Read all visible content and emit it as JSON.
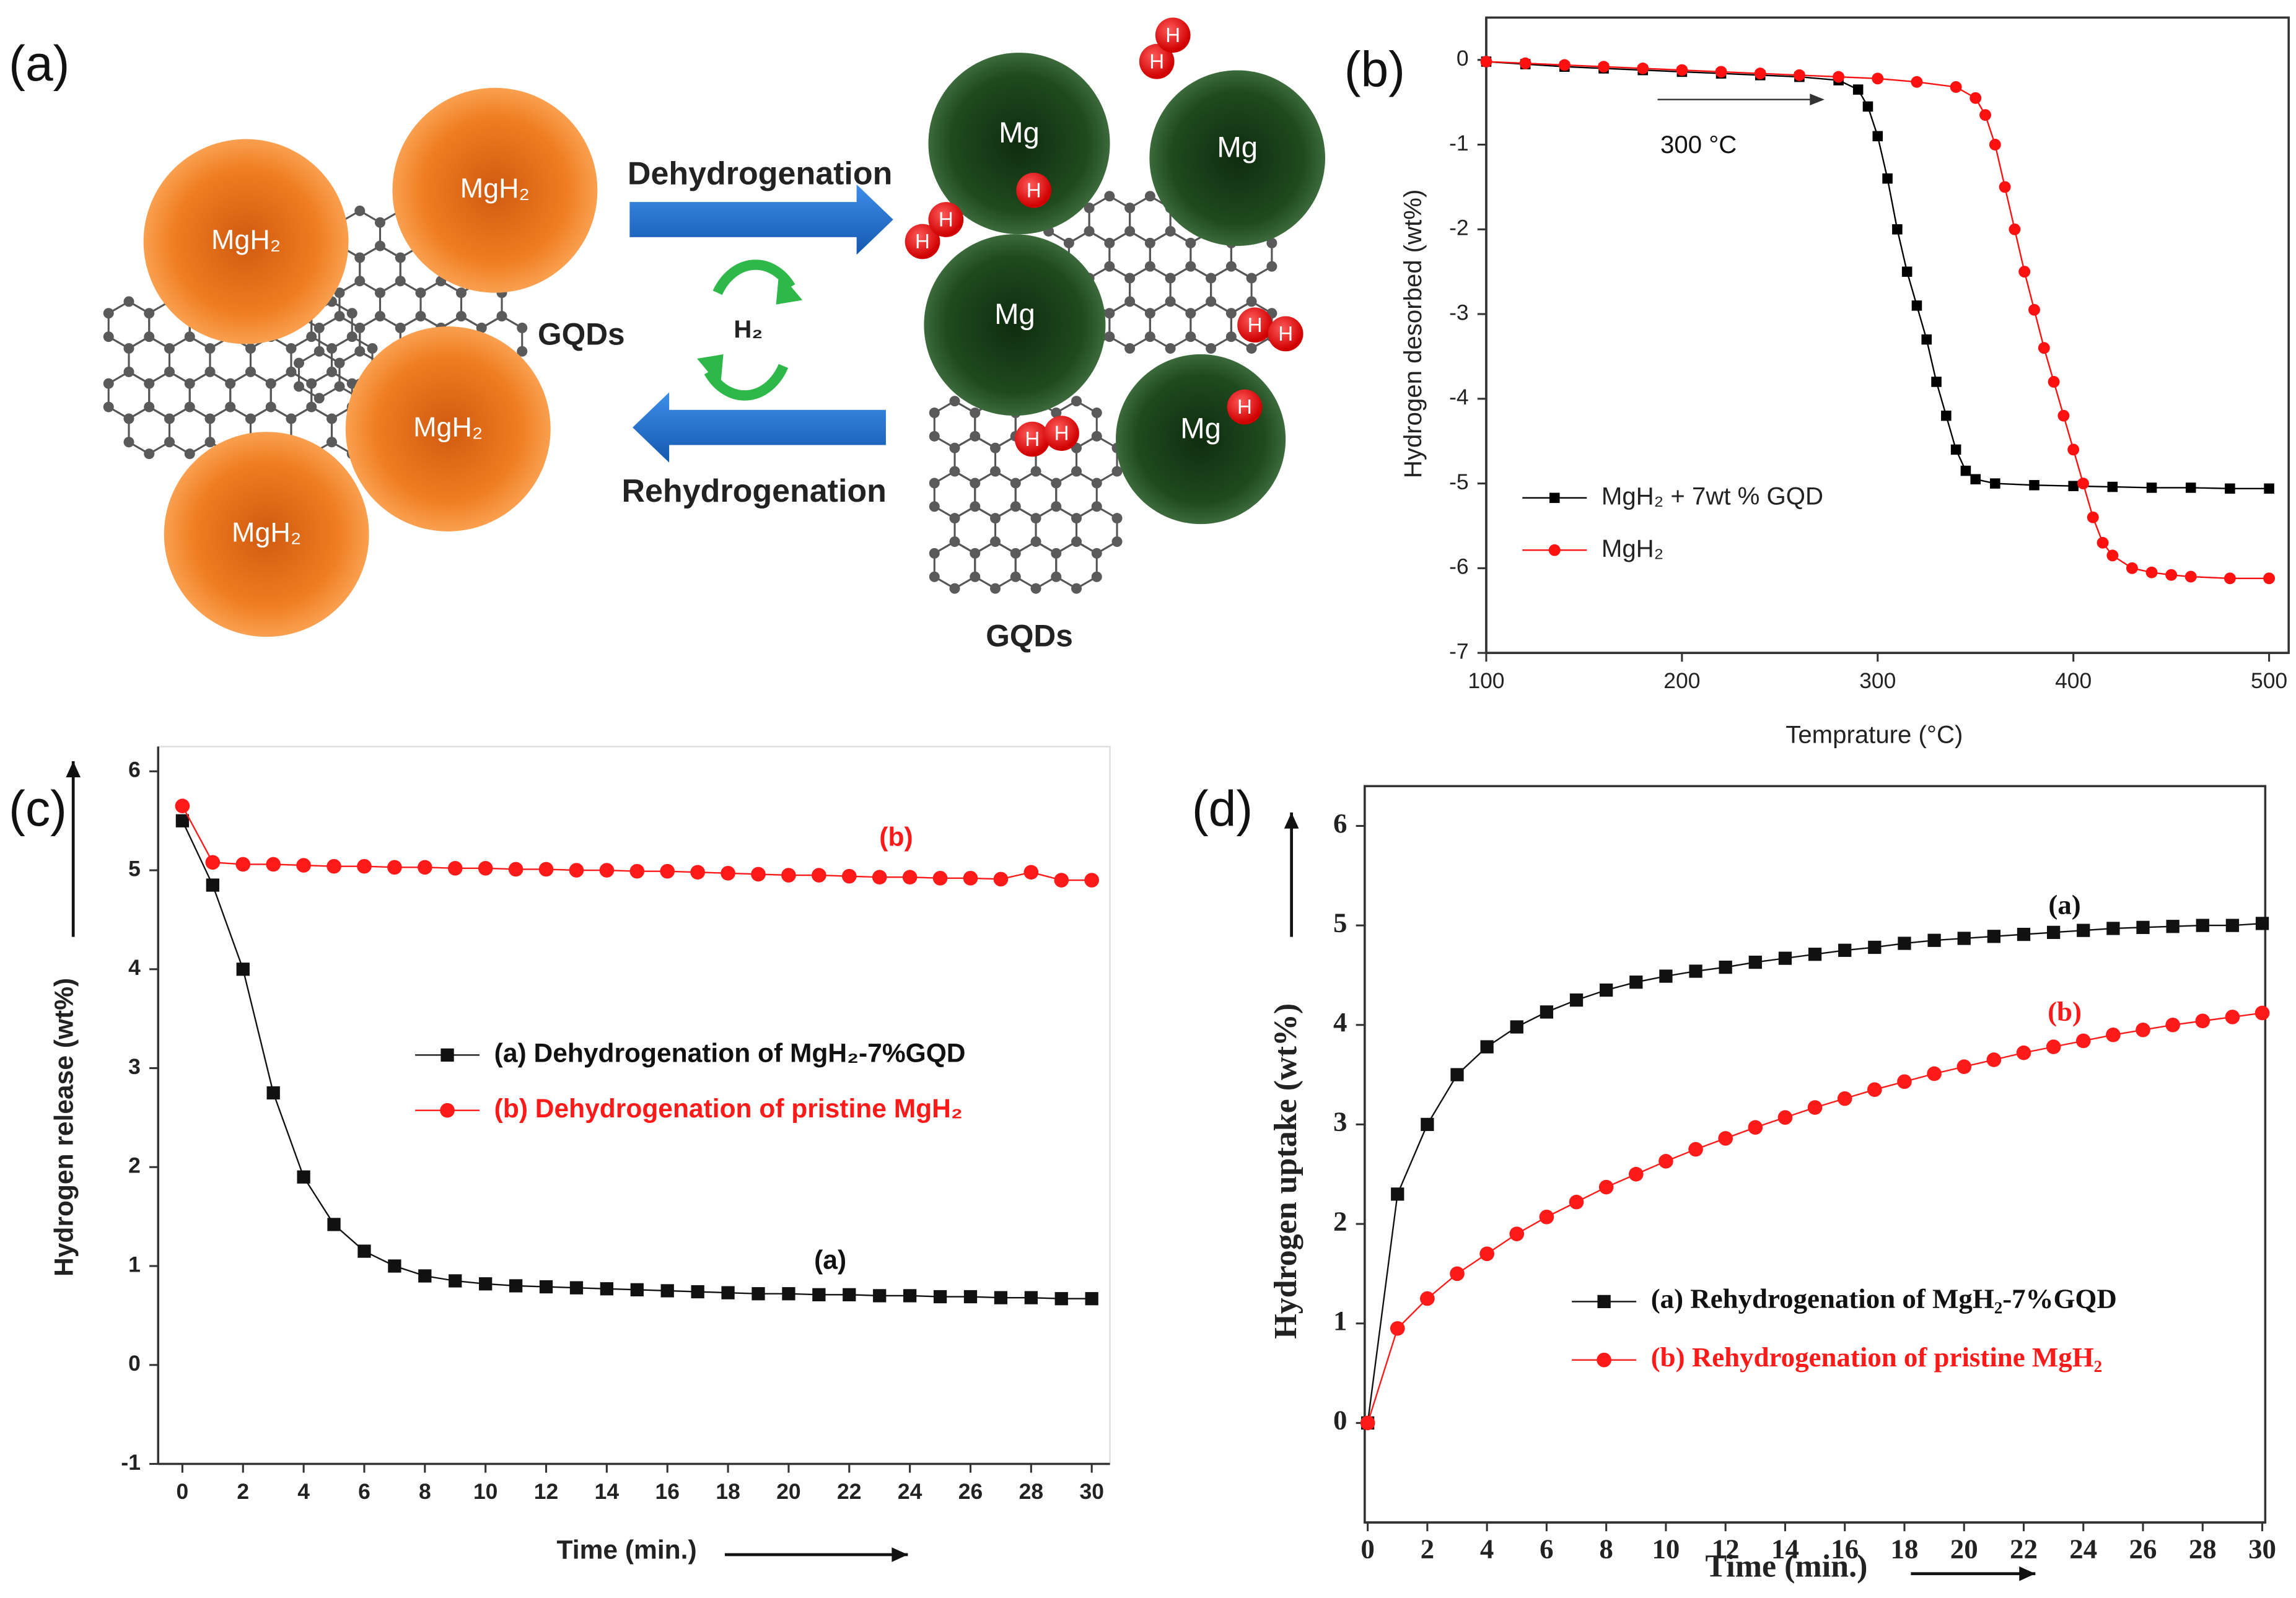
{
  "panel_labels": [
    "(a)",
    "(b)",
    "(c)",
    "(d)"
  ],
  "diagram": {
    "mgh2_labels": [
      "MgH₂",
      "MgH₂",
      "MgH₂",
      "MgH₂"
    ],
    "mg_labels": [
      "Mg",
      "Mg",
      "Mg",
      "Mg"
    ],
    "hydrogen_labels": [
      "H",
      "H",
      "H",
      "H",
      "H",
      "H",
      "H",
      "H",
      "H",
      "H"
    ],
    "process_labels": [
      "Dehydrogenation",
      "Rehydrogenation"
    ],
    "cycle_label": "H₂",
    "gqd_labels": [
      "GQDs",
      "GQDs"
    ]
  },
  "chart_data": [
    {
      "type": "line",
      "xlabel": "Temprature (°C)",
      "ylabel": "Hydrogen desorbed (wt%)",
      "xlim": [
        100,
        510
      ],
      "ylim": [
        -7,
        0.5
      ],
      "xticks": [
        100,
        200,
        300,
        400,
        500
      ],
      "yticks": [
        0,
        -1,
        -2,
        -3,
        -4,
        -5,
        -6,
        -7
      ],
      "legend": "lower left",
      "annotations": [
        "300 °C"
      ],
      "series": [
        {
          "name": "MgH₂ + 7wt % GQD",
          "color": "#000000",
          "marker": "square",
          "x": [
            100,
            120,
            140,
            160,
            180,
            200,
            220,
            240,
            260,
            280,
            290,
            295,
            300,
            305,
            310,
            315,
            320,
            325,
            330,
            335,
            340,
            345,
            350,
            360,
            380,
            400,
            420,
            440,
            460,
            480,
            500
          ],
          "values": [
            -0.02,
            -0.05,
            -0.08,
            -0.1,
            -0.12,
            -0.14,
            -0.16,
            -0.18,
            -0.2,
            -0.24,
            -0.35,
            -0.55,
            -0.9,
            -1.4,
            -2.0,
            -2.5,
            -2.9,
            -3.3,
            -3.8,
            -4.2,
            -4.6,
            -4.85,
            -4.95,
            -5.0,
            -5.02,
            -5.03,
            -5.04,
            -5.05,
            -5.05,
            -5.06,
            -5.06
          ]
        },
        {
          "name": "MgH₂",
          "color": "#ff1010",
          "marker": "circle",
          "x": [
            100,
            120,
            140,
            160,
            180,
            200,
            220,
            240,
            260,
            280,
            300,
            320,
            340,
            350,
            355,
            360,
            365,
            370,
            375,
            380,
            385,
            390,
            395,
            400,
            405,
            410,
            415,
            420,
            430,
            440,
            450,
            460,
            480,
            500
          ],
          "values": [
            -0.02,
            -0.04,
            -0.06,
            -0.08,
            -0.1,
            -0.12,
            -0.14,
            -0.16,
            -0.18,
            -0.2,
            -0.22,
            -0.26,
            -0.32,
            -0.45,
            -0.65,
            -1.0,
            -1.5,
            -2.0,
            -2.5,
            -2.95,
            -3.4,
            -3.8,
            -4.2,
            -4.6,
            -5.0,
            -5.4,
            -5.7,
            -5.85,
            -6.0,
            -6.05,
            -6.08,
            -6.1,
            -6.12,
            -6.12
          ]
        }
      ]
    },
    {
      "type": "line",
      "xlabel": "Time (min.)",
      "ylabel": "Hydrogen release (wt%)",
      "xlim": [
        -0.8,
        30.6
      ],
      "ylim": [
        -1,
        6.25
      ],
      "xticks": [
        0,
        2,
        4,
        6,
        8,
        10,
        12,
        14,
        16,
        18,
        20,
        22,
        24,
        26,
        28,
        30
      ],
      "yticks": [
        -1,
        0,
        1,
        2,
        3,
        4,
        5,
        6
      ],
      "legend": "center",
      "annotations": [
        "(a)",
        "(b)"
      ],
      "x": [
        0,
        1,
        2,
        3,
        4,
        5,
        6,
        7,
        8,
        9,
        10,
        11,
        12,
        13,
        14,
        15,
        16,
        17,
        18,
        19,
        20,
        21,
        22,
        23,
        24,
        25,
        26,
        27,
        28,
        29,
        30
      ],
      "series": [
        {
          "name": "(a) Dehydrogenation of MgH₂-7%GQD",
          "color": "#111111",
          "marker": "square",
          "values": [
            5.5,
            4.85,
            4.0,
            2.75,
            1.9,
            1.42,
            1.15,
            1.0,
            0.9,
            0.85,
            0.82,
            0.8,
            0.79,
            0.78,
            0.77,
            0.76,
            0.75,
            0.74,
            0.73,
            0.72,
            0.72,
            0.71,
            0.71,
            0.7,
            0.7,
            0.69,
            0.69,
            0.68,
            0.68,
            0.67,
            0.67
          ]
        },
        {
          "name": "(b) Dehydrogenation of pristine MgH₂",
          "color": "#ff1a1a",
          "marker": "circle",
          "values": [
            5.65,
            5.08,
            5.06,
            5.06,
            5.05,
            5.04,
            5.04,
            5.03,
            5.03,
            5.02,
            5.02,
            5.01,
            5.01,
            5.0,
            5.0,
            4.99,
            4.99,
            4.98,
            4.97,
            4.96,
            4.95,
            4.95,
            4.94,
            4.93,
            4.93,
            4.92,
            4.92,
            4.91,
            4.98,
            4.9,
            4.9
          ]
        }
      ]
    },
    {
      "type": "line",
      "xlabel": "Time (min.)",
      "ylabel": "Hydrogen uptake (wt%)",
      "xlim": [
        -0.1,
        30.1
      ],
      "ylim": [
        -1,
        6.4
      ],
      "xticks": [
        0,
        2,
        4,
        6,
        8,
        10,
        12,
        14,
        16,
        18,
        20,
        22,
        24,
        26,
        28,
        30
      ],
      "yticks": [
        0,
        1,
        2,
        3,
        4,
        5,
        6
      ],
      "legend": "lower right",
      "annotations": [
        "(a)",
        "(b)"
      ],
      "x": [
        0,
        1,
        2,
        3,
        4,
        5,
        6,
        7,
        8,
        9,
        10,
        11,
        12,
        13,
        14,
        15,
        16,
        17,
        18,
        19,
        20,
        21,
        22,
        23,
        24,
        25,
        26,
        27,
        28,
        29,
        30
      ],
      "series": [
        {
          "name": "(a) Rehydrogenation of MgH₂-7%GQD",
          "color": "#111111",
          "marker": "square",
          "values": [
            0,
            2.3,
            3.0,
            3.5,
            3.78,
            3.98,
            4.13,
            4.25,
            4.35,
            4.43,
            4.49,
            4.54,
            4.58,
            4.63,
            4.67,
            4.71,
            4.75,
            4.78,
            4.82,
            4.85,
            4.87,
            4.89,
            4.91,
            4.93,
            4.95,
            4.97,
            4.98,
            4.99,
            5.0,
            5.0,
            5.02
          ]
        },
        {
          "name": "(b) Rehydrogenation of pristine MgH₂",
          "color": "#ff1a1a",
          "marker": "circle",
          "values": [
            0,
            0.95,
            1.25,
            1.5,
            1.7,
            1.9,
            2.07,
            2.22,
            2.37,
            2.5,
            2.63,
            2.75,
            2.86,
            2.97,
            3.07,
            3.17,
            3.26,
            3.35,
            3.43,
            3.51,
            3.58,
            3.65,
            3.72,
            3.78,
            3.84,
            3.9,
            3.95,
            4.0,
            4.04,
            4.08,
            4.12
          ]
        }
      ]
    }
  ]
}
